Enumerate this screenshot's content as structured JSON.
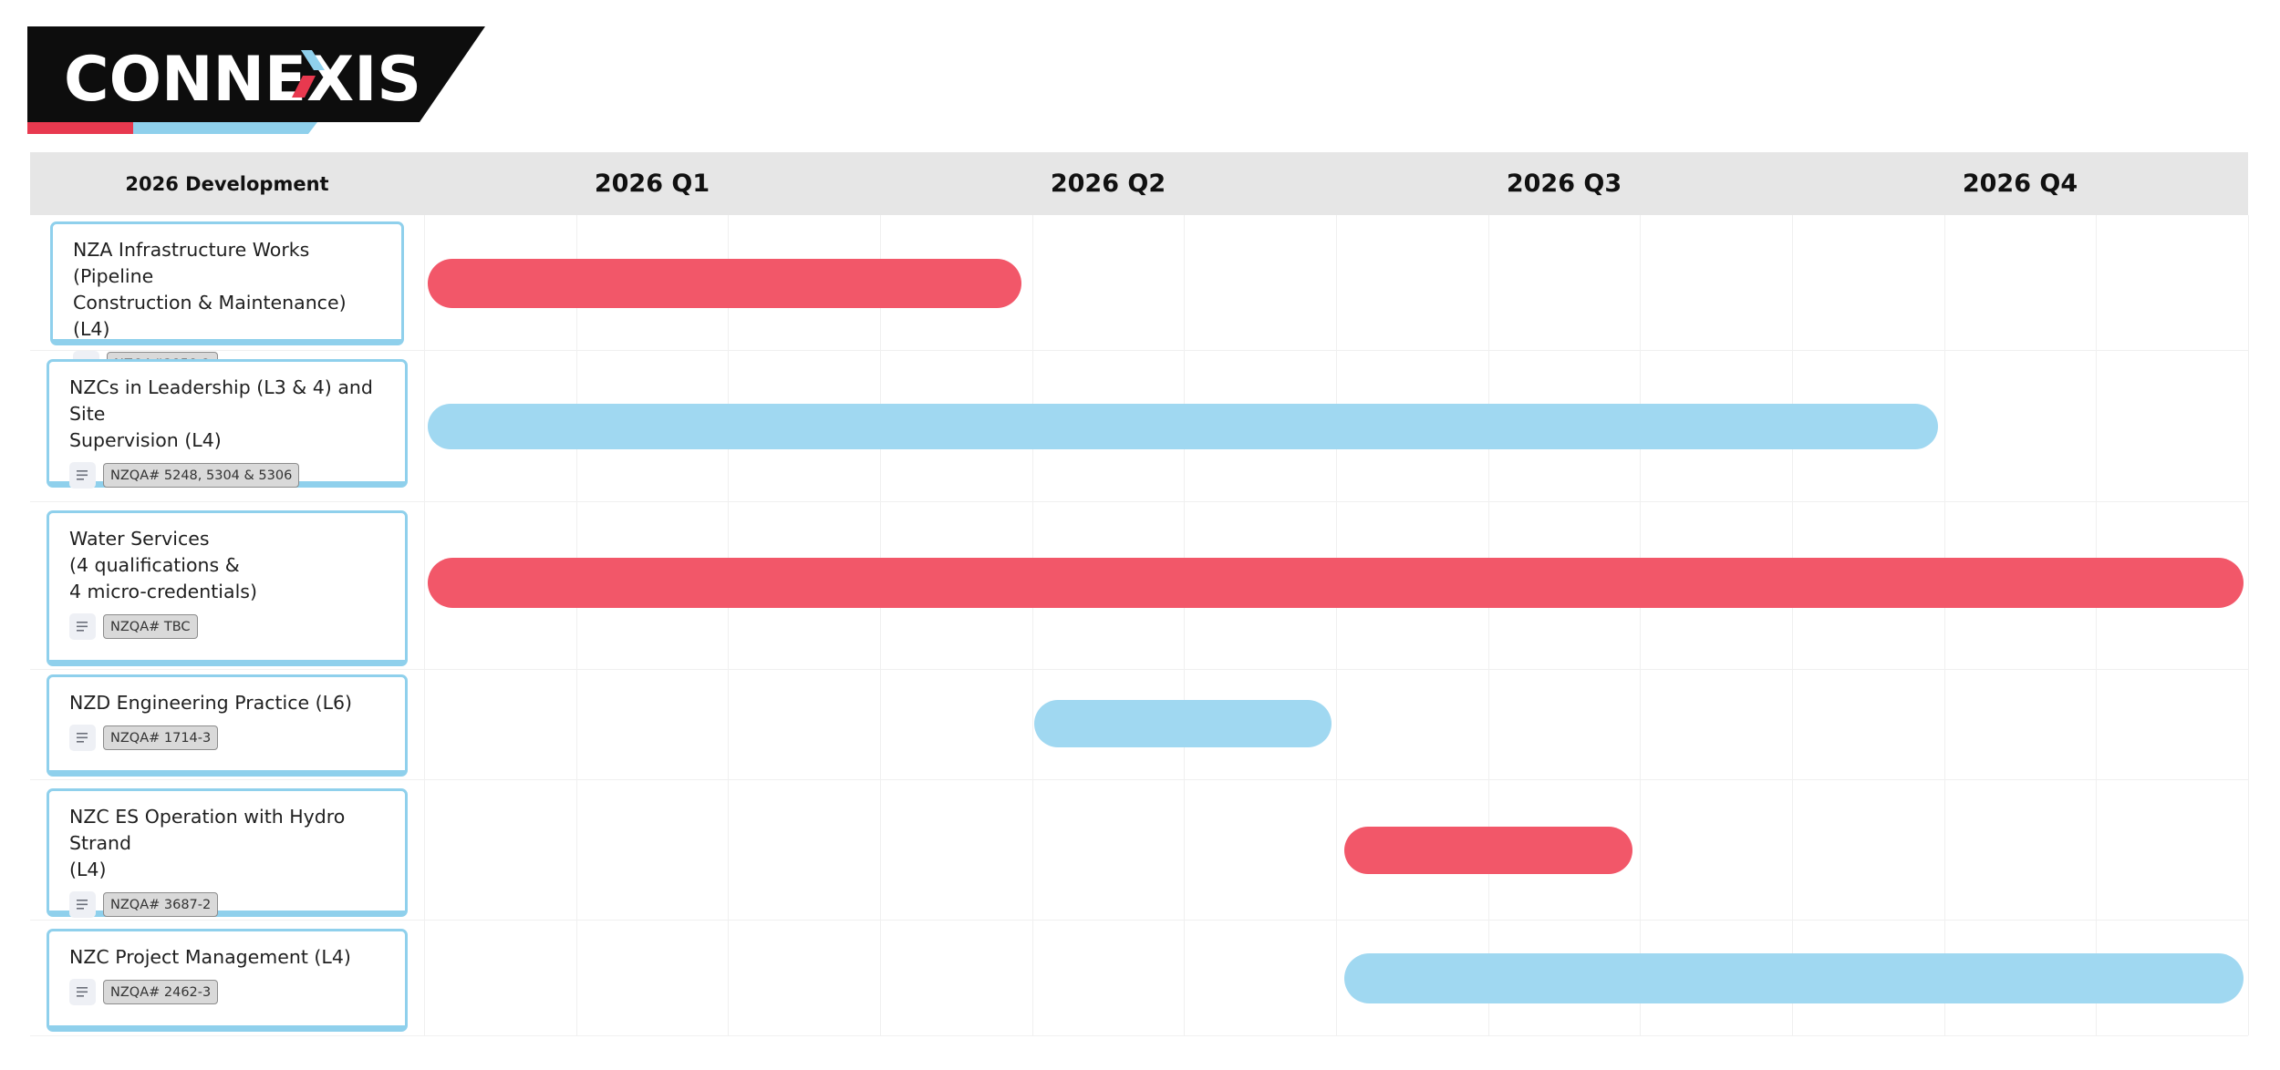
{
  "colors": {
    "accent_red": "#f25769",
    "accent_blue": "#a0d8f1",
    "logo_black": "#0d0d0d",
    "header_grey": "#e6e6e6",
    "card_border": "#8fd0ec"
  },
  "logo": {
    "text": "CONNEXIS"
  },
  "header": {
    "label": "2026 Development",
    "quarters": [
      "2026 Q1",
      "2026 Q2",
      "2026 Q3",
      "2026 Q4"
    ]
  },
  "rows": [
    {
      "title": "NZA Infrastructure Works (Pipeline\nConstruction & Maintenance) (L4)",
      "tag": "NZQA#3858-2",
      "icon": "notes-lines-icon",
      "bar_color": "red",
      "start_quarter": 1.0,
      "end_quarter": 2.31
    },
    {
      "title": "NZCs in Leadership (L3 & 4) and Site\nSupervision (L4)",
      "tag": "NZQA# 5248, 5304 & 5306",
      "icon": "notes-lines-icon",
      "bar_color": "blue",
      "start_quarter": 1.0,
      "end_quarter": 4.32
    },
    {
      "title": "Water Services\n(4 qualifications &\n4 micro-credentials)",
      "tag": "NZQA# TBC",
      "icon": "notes-lines-icon",
      "bar_color": "red",
      "start_quarter": 1.0,
      "end_quarter": 4.99
    },
    {
      "title": "NZD Engineering Practice (L6)",
      "tag": "NZQA# 1714-3",
      "icon": "notes-lines-icon",
      "bar_color": "blue",
      "start_quarter": 2.33,
      "end_quarter": 2.99
    },
    {
      "title": "NZC ES Operation with Hydro Strand\n(L4)",
      "tag": "NZQA# 3687-2",
      "icon": "notes-lines-icon",
      "bar_color": "red",
      "start_quarter": 3.01,
      "end_quarter": 3.65
    },
    {
      "title": "NZC Project Management (L4)",
      "tag": "NZQA# 2462-3",
      "icon": "notes-lines-icon",
      "bar_color": "blue",
      "start_quarter": 3.01,
      "end_quarter": 4.99
    }
  ]
}
